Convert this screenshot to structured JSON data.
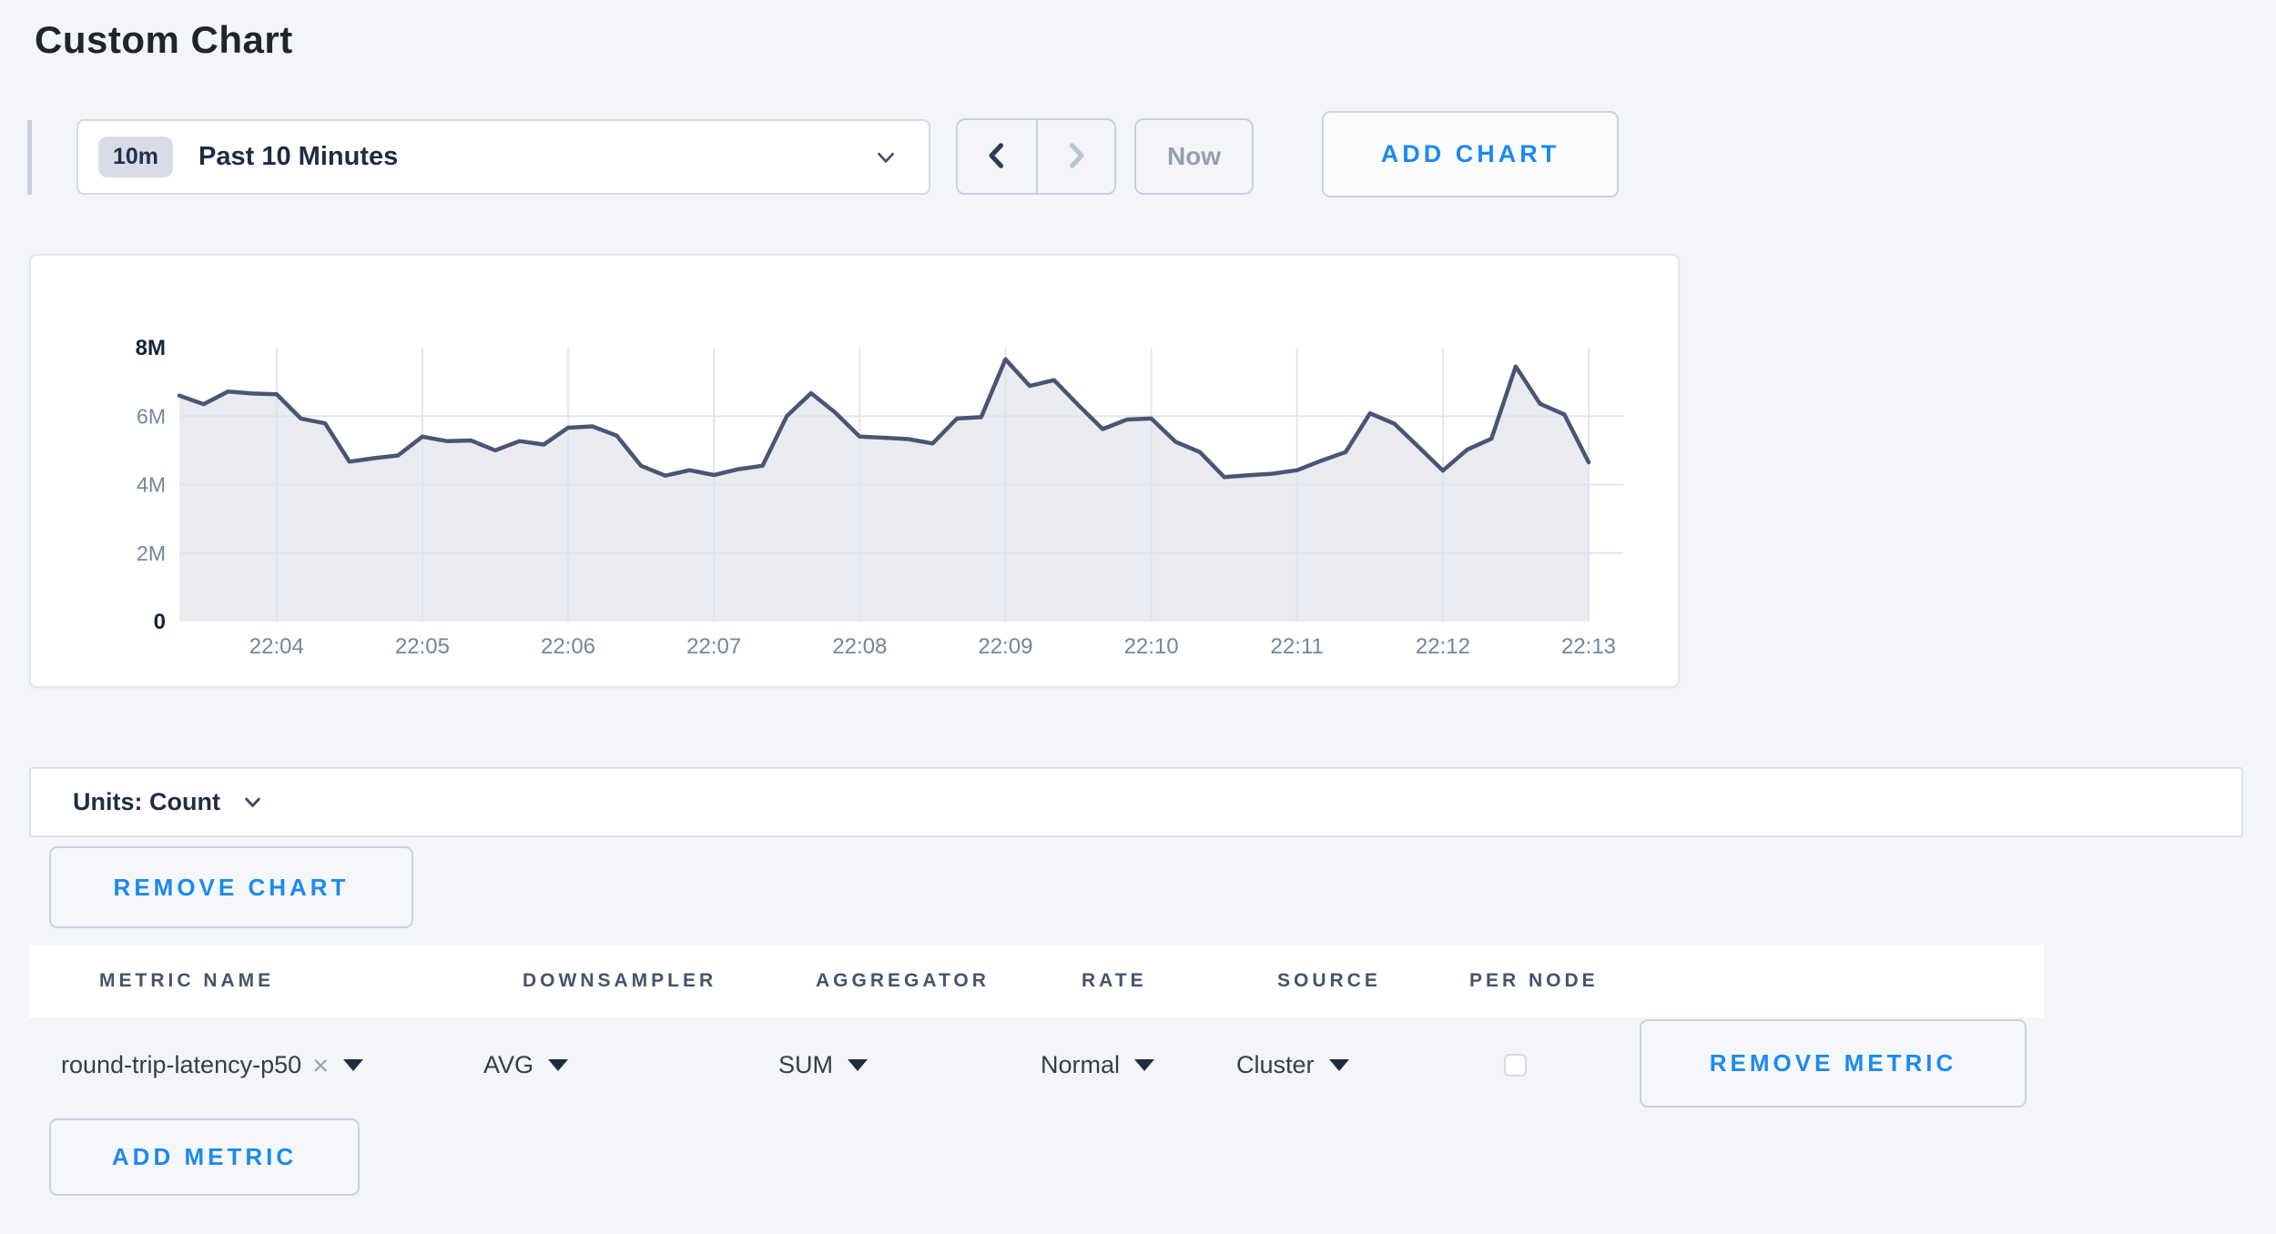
{
  "page": {
    "title": "Custom Chart"
  },
  "toolbar": {
    "time_window_badge": "10m",
    "time_window_label": "Past 10 Minutes",
    "now_button_label": "Now",
    "add_chart_label": "ADD CHART"
  },
  "chart_data": {
    "type": "area",
    "title": "",
    "x_labels": [
      "22:04",
      "22:05",
      "22:06",
      "22:07",
      "22:08",
      "22:09",
      "22:10",
      "22:11",
      "22:12",
      "22:13"
    ],
    "x_start": "22:03:20",
    "x_end": "22:13:00",
    "point_interval_seconds": 10,
    "y_ticks": [
      "8M",
      "6M",
      "4M",
      "2M",
      "0"
    ],
    "y_tick_values_millions": [
      8,
      6,
      4,
      2,
      0
    ],
    "ylim_millions": [
      0,
      8
    ],
    "grid": true,
    "legend_position": "none",
    "series": [
      {
        "name": "round-trip-latency-p50",
        "unit": "count",
        "values_millions": [
          6.6,
          6.35,
          6.72,
          6.66,
          6.64,
          5.93,
          5.79,
          4.67,
          4.77,
          4.85,
          5.4,
          5.27,
          5.29,
          5.0,
          5.27,
          5.17,
          5.66,
          5.7,
          5.43,
          4.55,
          4.26,
          4.42,
          4.28,
          4.45,
          4.55,
          6.0,
          6.67,
          6.1,
          5.4,
          5.37,
          5.33,
          5.2,
          5.93,
          5.97,
          7.66,
          6.88,
          7.05,
          6.32,
          5.62,
          5.9,
          5.93,
          5.25,
          4.95,
          4.22,
          4.27,
          4.32,
          4.42,
          4.7,
          4.95,
          6.08,
          5.78,
          5.1,
          4.41,
          5.02,
          5.34,
          7.45,
          6.36,
          6.05,
          4.65
        ]
      }
    ]
  },
  "units_bar": {
    "label": "Units: Count"
  },
  "buttons": {
    "remove_chart": "REMOVE CHART",
    "remove_metric": "REMOVE METRIC",
    "add_metric": "ADD METRIC"
  },
  "metrics_table": {
    "headers": [
      "METRIC NAME",
      "DOWNSAMPLER",
      "AGGREGATOR",
      "RATE",
      "SOURCE",
      "PER NODE"
    ],
    "remove_tag_glyph": "×",
    "rows": [
      {
        "metric_name": "round-trip-latency-p50",
        "downsampler": "AVG",
        "aggregator": "SUM",
        "rate": "Normal",
        "source": "Cluster",
        "per_node_checked": false
      }
    ]
  },
  "colors": {
    "accent_blue": "#1c8af0",
    "chart_line": "#4a5574",
    "chart_fill": "#e9ebf1",
    "grid_line": "#dde2ec",
    "axis_label": "#76849f",
    "axis_label_strong": "#15233f",
    "page_background": "#f3f5f9"
  }
}
